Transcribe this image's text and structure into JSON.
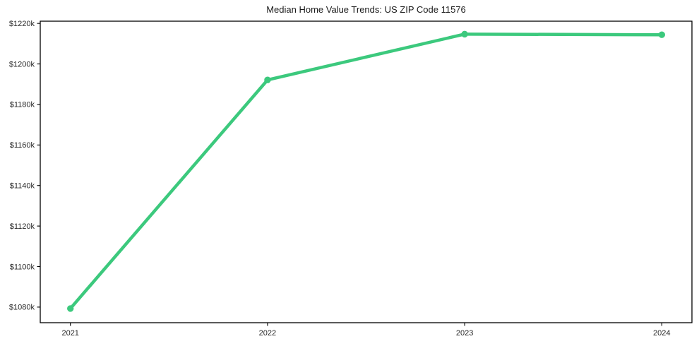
{
  "chart_data": {
    "type": "line",
    "title": "Median Home Value Trends: US ZIP Code 11576",
    "xlabel": "",
    "ylabel": "",
    "x_categories": [
      "2021",
      "2022",
      "2023",
      "2024"
    ],
    "values": [
      1079.3,
      1192.1,
      1214.7,
      1214.4
    ],
    "unit": "USD thousands",
    "y_tick_values": [
      1080,
      1100,
      1120,
      1140,
      1160,
      1180,
      1200,
      1220
    ],
    "y_tick_labels": [
      "$1080k",
      "$1100k",
      "$1120k",
      "$1140k",
      "$1160k",
      "$1180k",
      "$1200k",
      "$1220k"
    ],
    "ylim": [
      1072.3,
      1221.1
    ],
    "grid": false,
    "legend": false,
    "marker": "circle",
    "colors": {
      "line": "#3cc97d",
      "axis": "#000000",
      "tick_text": "#262626",
      "title_text": "#1a1a1a",
      "background": "#ffffff"
    }
  }
}
